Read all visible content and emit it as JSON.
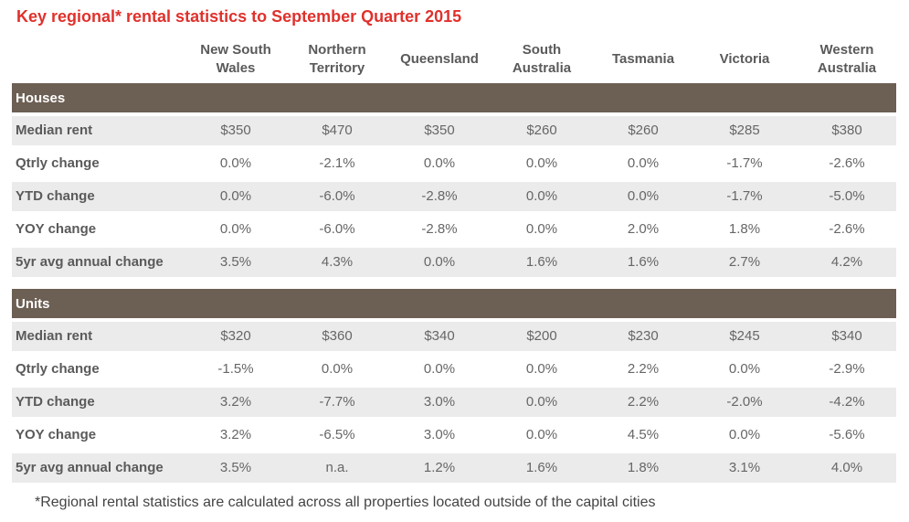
{
  "title": "Key regional* rental statistics to September Quarter 2015",
  "columns": [
    [
      "New South",
      "Wales"
    ],
    [
      "Northern",
      "Territory"
    ],
    [
      "Queensland"
    ],
    [
      "South",
      "Australia"
    ],
    [
      "Tasmania"
    ],
    [
      "Victoria"
    ],
    [
      "Western",
      "Australia"
    ]
  ],
  "sections": [
    {
      "name": "Houses",
      "rows": [
        {
          "label": "Median rent",
          "values": [
            "$350",
            "$470",
            "$350",
            "$260",
            "$260",
            "$285",
            "$380"
          ]
        },
        {
          "label": "Qtrly change",
          "values": [
            "0.0%",
            "-2.1%",
            "0.0%",
            "0.0%",
            "0.0%",
            "-1.7%",
            "-2.6%"
          ]
        },
        {
          "label": "YTD change",
          "values": [
            "0.0%",
            "-6.0%",
            "-2.8%",
            "0.0%",
            "0.0%",
            "-1.7%",
            "-5.0%"
          ]
        },
        {
          "label": "YOY change",
          "values": [
            "0.0%",
            "-6.0%",
            "-2.8%",
            "0.0%",
            "2.0%",
            "1.8%",
            "-2.6%"
          ]
        },
        {
          "label": "5yr avg annual change",
          "values": [
            "3.5%",
            "4.3%",
            "0.0%",
            "1.6%",
            "1.6%",
            "2.7%",
            "4.2%"
          ]
        }
      ]
    },
    {
      "name": "Units",
      "rows": [
        {
          "label": "Median rent",
          "values": [
            "$320",
            "$360",
            "$340",
            "$200",
            "$230",
            "$245",
            "$340"
          ]
        },
        {
          "label": "Qtrly change",
          "values": [
            "-1.5%",
            "0.0%",
            "0.0%",
            "0.0%",
            "2.2%",
            "0.0%",
            "-2.9%"
          ]
        },
        {
          "label": "YTD change",
          "values": [
            "3.2%",
            "-7.7%",
            "3.0%",
            "0.0%",
            "2.2%",
            "-2.0%",
            "-4.2%"
          ]
        },
        {
          "label": "YOY change",
          "values": [
            "3.2%",
            "-6.5%",
            "3.0%",
            "0.0%",
            "4.5%",
            "0.0%",
            "-5.6%"
          ]
        },
        {
          "label": "5yr avg annual change",
          "values": [
            "3.5%",
            "n.a.",
            "1.2%",
            "1.6%",
            "1.8%",
            "3.1%",
            "4.0%"
          ]
        }
      ]
    }
  ],
  "footnote": "*Regional rental statistics are calculated across all properties located outside of the capital cities",
  "colors": {
    "title": "#e0312c",
    "section_bar": "#6c5f53",
    "row_shade": "#ebebeb"
  }
}
